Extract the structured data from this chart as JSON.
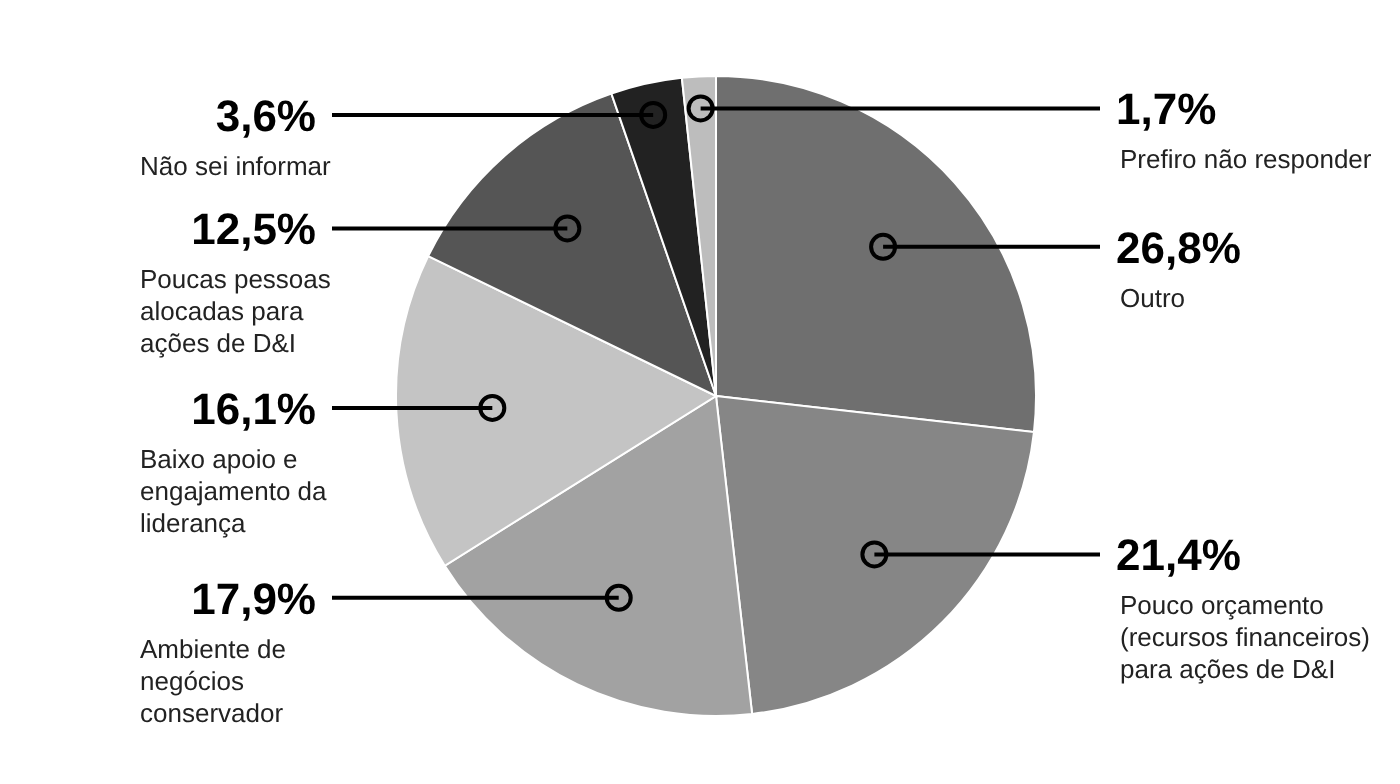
{
  "chart_data": {
    "type": "pie",
    "categories": [
      "Outro",
      "Pouco orçamento (recursos financeiros) para ações de D&I",
      "Ambiente de negócios conservador",
      "Baixo apoio e engajamento da liderança",
      "Poucas pessoas alocadas para ações de D&I",
      "Não sei informar",
      "Prefiro não responder"
    ],
    "values": [
      26.8,
      21.4,
      17.9,
      16.1,
      12.5,
      3.6,
      1.7
    ],
    "value_labels": [
      "26,8%",
      "21,4%",
      "17,9%",
      "16,1%",
      "12,5%",
      "3,6%",
      "1,7%"
    ],
    "colors": [
      "#6f6f6f",
      "#868686",
      "#a2a2a2",
      "#c4c4c4",
      "#555555",
      "#222222",
      "#bdbdbd"
    ],
    "legend": false
  }
}
